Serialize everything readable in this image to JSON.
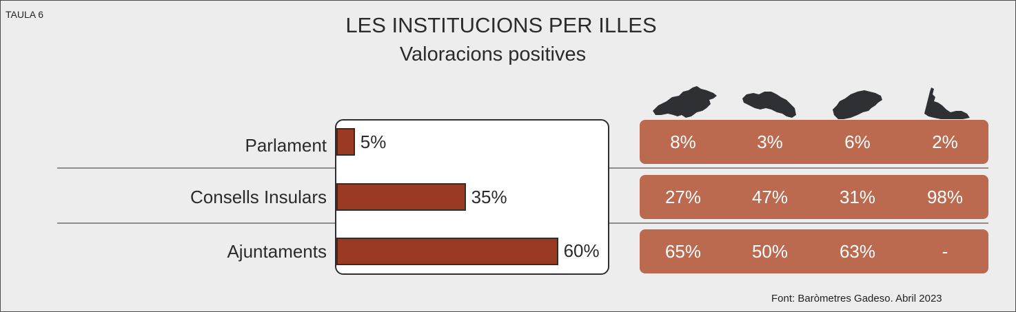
{
  "table_id": "TAULA 6",
  "source": "Font: Baròmetres Gadeso. Abril 2023",
  "colors": {
    "background": "#ededed",
    "bar_fill": "#9b3a22",
    "island_panel": "#bb6a4f",
    "island_silhouette": "#2e3033"
  },
  "islands": [
    {
      "icon": "mallorca-island-icon"
    },
    {
      "icon": "menorca-island-icon"
    },
    {
      "icon": "eivissa-island-icon"
    },
    {
      "icon": "formentera-island-icon"
    }
  ],
  "chart_data": {
    "type": "bar",
    "orientation": "horizontal",
    "title": "LES INSTITUCIONS PER ILLES",
    "subtitle": "Valoracions positives",
    "categories": [
      "Parlament",
      "Consells Insulars",
      "Ajuntaments"
    ],
    "values": [
      5,
      35,
      60
    ],
    "value_labels": [
      "5%",
      "35%",
      "60%"
    ],
    "xlim": [
      0,
      100
    ],
    "grid": false,
    "islands_table": {
      "rows": [
        [
          "8%",
          "3%",
          "6%",
          "2%"
        ],
        [
          "27%",
          "47%",
          "31%",
          "98%"
        ],
        [
          "65%",
          "50%",
          "63%",
          "-"
        ]
      ]
    }
  }
}
